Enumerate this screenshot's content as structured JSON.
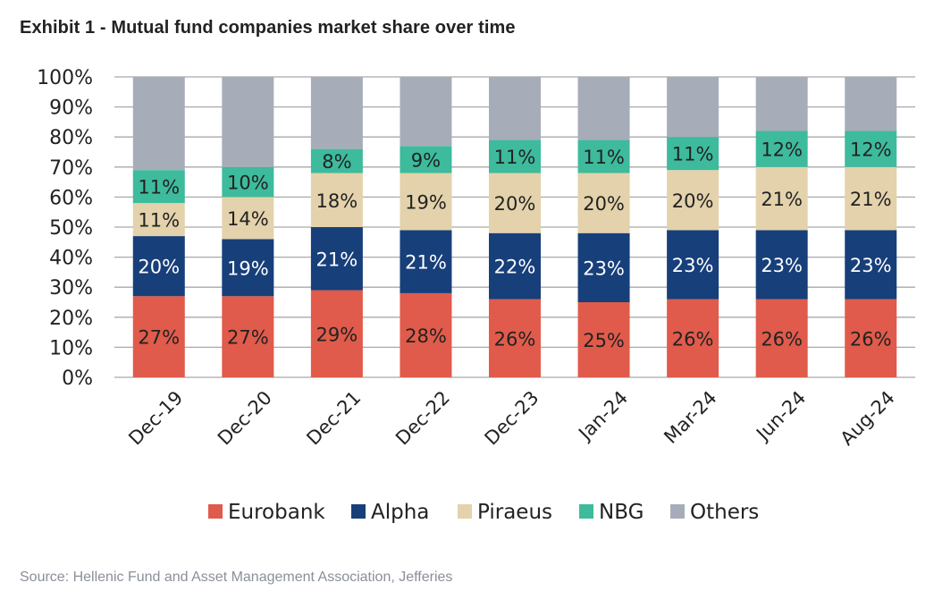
{
  "title": "Exhibit 1 - Mutual fund companies market share over time",
  "source": "Source: Hellenic Fund and Asset Management Association, Jefferies",
  "chart_data": {
    "type": "bar",
    "stacked": true,
    "categories": [
      "Dec-19",
      "Dec-20",
      "Dec-21",
      "Dec-22",
      "Dec-23",
      "Jan-24",
      "Mar-24",
      "Jun-24",
      "Aug-24"
    ],
    "yticks": [
      "0%",
      "10%",
      "20%",
      "30%",
      "40%",
      "50%",
      "60%",
      "70%",
      "80%",
      "90%",
      "100%"
    ],
    "ylim": [
      0,
      100
    ],
    "grid": true,
    "legend_position": "bottom",
    "series": [
      {
        "name": "Eurobank",
        "color": "#e05b4b",
        "label_color": "#222222",
        "values": [
          27,
          27,
          29,
          28,
          26,
          25,
          26,
          26,
          26
        ],
        "labels": [
          "27%",
          "27%",
          "29%",
          "28%",
          "26%",
          "25%",
          "26%",
          "26%",
          "26%"
        ]
      },
      {
        "name": "Alpha",
        "color": "#173f7a",
        "label_color": "#ffffff",
        "values": [
          20,
          19,
          21,
          21,
          22,
          23,
          23,
          23,
          23
        ],
        "labels": [
          "20%",
          "19%",
          "21%",
          "21%",
          "22%",
          "23%",
          "23%",
          "23%",
          "23%"
        ]
      },
      {
        "name": "Piraeus",
        "color": "#e3d2ab",
        "label_color": "#222222",
        "values": [
          11,
          14,
          18,
          19,
          20,
          20,
          20,
          21,
          21
        ],
        "labels": [
          "11%",
          "14%",
          "18%",
          "19%",
          "20%",
          "20%",
          "20%",
          "21%",
          "21%"
        ]
      },
      {
        "name": "NBG",
        "color": "#3dbb9c",
        "label_color": "#222222",
        "values": [
          11,
          10,
          8,
          9,
          11,
          11,
          11,
          12,
          12
        ],
        "labels": [
          "11%",
          "10%",
          "8%",
          "9%",
          "11%",
          "11%",
          "11%",
          "12%",
          "12%"
        ]
      },
      {
        "name": "Others",
        "color": "#a7adb8",
        "label_color": "#222222",
        "values": [
          31,
          30,
          24,
          23,
          21,
          21,
          20,
          18,
          18
        ],
        "labels": [
          "",
          "",
          "",
          "",
          "",
          "",
          "",
          "",
          ""
        ]
      }
    ]
  }
}
